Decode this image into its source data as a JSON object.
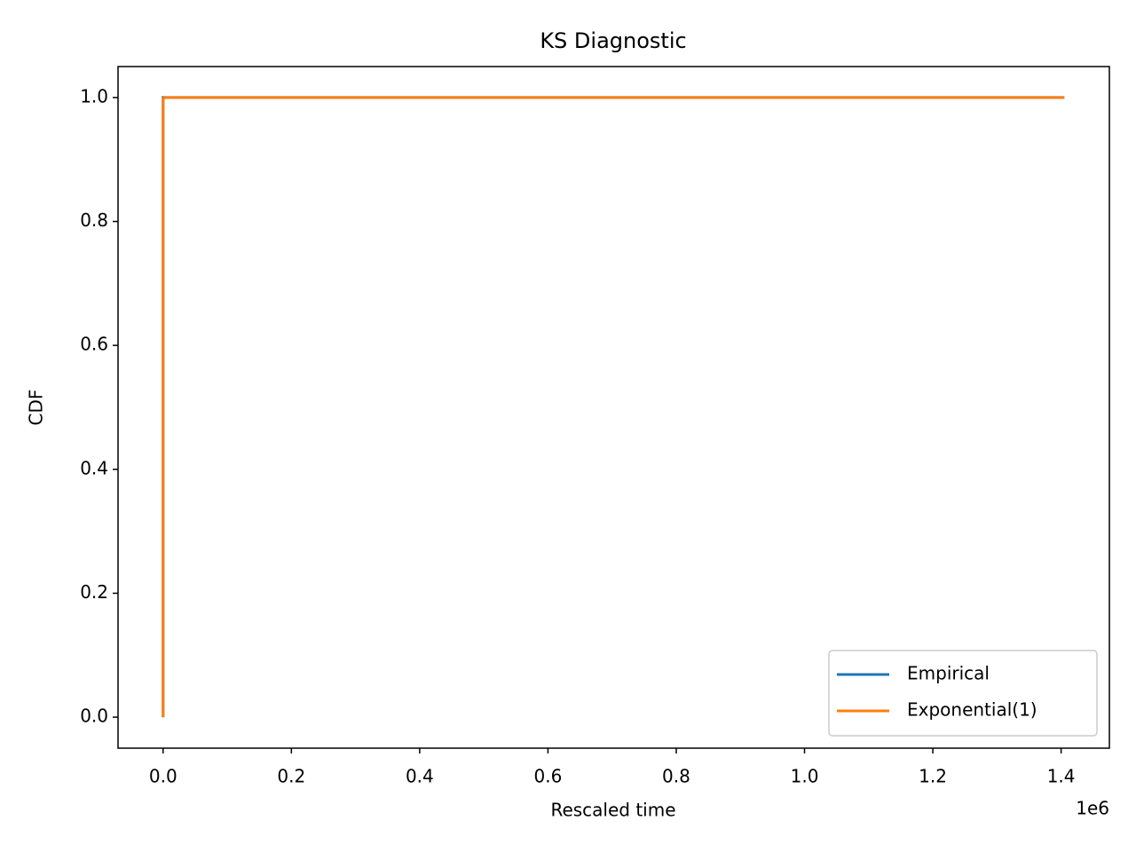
{
  "chart_data": {
    "type": "line",
    "title": "KS Diagnostic",
    "xlabel": "Rescaled time",
    "ylabel": "CDF",
    "x_offset_label": "1e6",
    "series": [
      {
        "name": "Empirical",
        "color": "#1f77b4",
        "x": [
          0,
          0,
          1405000
        ],
        "values": [
          0,
          1,
          1
        ]
      },
      {
        "name": "Exponential(1)",
        "color": "#ff7f0e",
        "x": [
          0,
          0,
          3000,
          1405000
        ],
        "values": [
          0,
          0.998,
          1,
          1
        ]
      }
    ],
    "xlim": [
      -70250,
      1475250
    ],
    "xticks": [
      {
        "value": 0,
        "label": "0.0"
      },
      {
        "value": 200000,
        "label": "0.2"
      },
      {
        "value": 400000,
        "label": "0.4"
      },
      {
        "value": 600000,
        "label": "0.6"
      },
      {
        "value": 800000,
        "label": "0.8"
      },
      {
        "value": 1000000,
        "label": "1.0"
      },
      {
        "value": 1200000,
        "label": "1.2"
      },
      {
        "value": 1400000,
        "label": "1.4"
      }
    ],
    "ylim": [
      -0.05,
      1.05
    ],
    "yticks": [
      {
        "value": 0,
        "label": "0.0"
      },
      {
        "value": 0.2,
        "label": "0.2"
      },
      {
        "value": 0.4,
        "label": "0.4"
      },
      {
        "value": 0.6,
        "label": "0.6"
      },
      {
        "value": 0.8,
        "label": "0.8"
      },
      {
        "value": 1,
        "label": "1.0"
      }
    ],
    "legend": "lower right"
  }
}
